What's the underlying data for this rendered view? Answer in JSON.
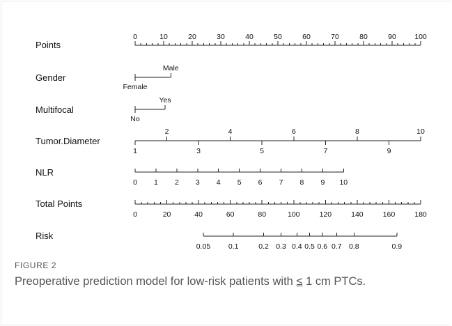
{
  "figure": {
    "label": "FIGURE 2",
    "caption_before": "Preoperative prediction model for low-risk patients with ",
    "caption_symbol": "≤",
    "caption_after": " 1 cm PTCs."
  },
  "chart_data": {
    "type": "nomogram",
    "title": "",
    "rows": [
      {
        "name": "Points",
        "min": 0,
        "max": 100,
        "labels": [
          {
            "v": 0,
            "t": "0"
          },
          {
            "v": 10,
            "t": "10"
          },
          {
            "v": 20,
            "t": "20"
          },
          {
            "v": 30,
            "t": "30"
          },
          {
            "v": 40,
            "t": "40"
          },
          {
            "v": 50,
            "t": "50"
          },
          {
            "v": 60,
            "t": "60"
          },
          {
            "v": 70,
            "t": "70"
          },
          {
            "v": 80,
            "t": "80"
          },
          {
            "v": 90,
            "t": "90"
          },
          {
            "v": 100,
            "t": "100"
          }
        ],
        "minor_step": 2
      },
      {
        "name": "Gender",
        "categories": [
          {
            "t": "Female",
            "points": 0
          },
          {
            "t": "Male",
            "points": 12.5
          }
        ]
      },
      {
        "name": "Multifocal",
        "categories": [
          {
            "t": "No",
            "points": 0
          },
          {
            "t": "Yes",
            "points": 10.5
          }
        ]
      },
      {
        "name": "Tumor.Diameter",
        "upper_labels": [
          {
            "v": 2,
            "points": 11.1,
            "t": "2"
          },
          {
            "v": 4,
            "points": 33.3,
            "t": "4"
          },
          {
            "v": 6,
            "points": 55.6,
            "t": "6"
          },
          {
            "v": 8,
            "points": 77.8,
            "t": "8"
          },
          {
            "v": 10,
            "points": 100,
            "t": "10"
          }
        ],
        "lower_labels": [
          {
            "v": 1,
            "points": 0,
            "t": "1"
          },
          {
            "v": 3,
            "points": 22.2,
            "t": "3"
          },
          {
            "v": 5,
            "points": 44.4,
            "t": "5"
          },
          {
            "v": 7,
            "points": 66.7,
            "t": "7"
          },
          {
            "v": 9,
            "points": 88.9,
            "t": "9"
          }
        ]
      },
      {
        "name": "NLR",
        "labels": [
          {
            "v": 0,
            "points": 0,
            "t": "0"
          },
          {
            "v": 1,
            "points": 7.3,
            "t": "1"
          },
          {
            "v": 2,
            "points": 14.6,
            "t": "2"
          },
          {
            "v": 3,
            "points": 21.9,
            "t": "3"
          },
          {
            "v": 4,
            "points": 29.2,
            "t": "4"
          },
          {
            "v": 5,
            "points": 36.5,
            "t": "5"
          },
          {
            "v": 6,
            "points": 43.8,
            "t": "6"
          },
          {
            "v": 7,
            "points": 51.1,
            "t": "7"
          },
          {
            "v": 8,
            "points": 58.4,
            "t": "8"
          },
          {
            "v": 9,
            "points": 65.7,
            "t": "9"
          },
          {
            "v": 10,
            "points": 73,
            "t": "10"
          }
        ]
      },
      {
        "name": "Total Points",
        "min": 0,
        "max": 180,
        "labels": [
          {
            "v": 0,
            "t": "0"
          },
          {
            "v": 20,
            "t": "20"
          },
          {
            "v": 40,
            "t": "40"
          },
          {
            "v": 60,
            "t": "60"
          },
          {
            "v": 80,
            "t": "80"
          },
          {
            "v": 100,
            "t": "100"
          },
          {
            "v": 120,
            "t": "120"
          },
          {
            "v": 140,
            "t": "140"
          },
          {
            "v": 160,
            "t": "160"
          },
          {
            "v": 180,
            "t": "180"
          }
        ],
        "minor_step": 4
      },
      {
        "name": "Risk",
        "labels": [
          {
            "v": 0.05,
            "total": 43,
            "t": "0.05"
          },
          {
            "v": 0.1,
            "total": 62,
            "t": "0.1"
          },
          {
            "v": 0.2,
            "total": 81,
            "t": "0.2"
          },
          {
            "v": 0.3,
            "total": 92,
            "t": "0.3"
          },
          {
            "v": 0.4,
            "total": 102,
            "t": "0.4"
          },
          {
            "v": 0.5,
            "total": 110,
            "t": "0.5"
          },
          {
            "v": 0.6,
            "total": 118,
            "t": "0.6"
          },
          {
            "v": 0.7,
            "total": 127,
            "t": "0.7"
          },
          {
            "v": 0.8,
            "total": 138,
            "t": "0.8"
          },
          {
            "v": 0.9,
            "total": 165,
            "t": "0.9"
          }
        ]
      }
    ]
  }
}
